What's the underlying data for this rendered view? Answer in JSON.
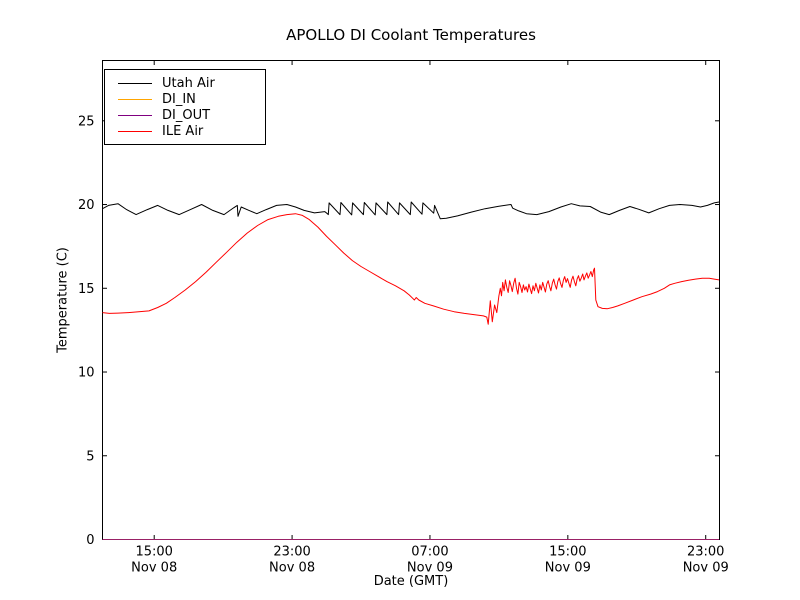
{
  "colors": {
    "background": "#ffffff",
    "axis": "#000000",
    "utah_air": "#000000",
    "di_in": "#ffa500",
    "di_out": "#800080",
    "ile_air": "#ff0000"
  },
  "chart_data": {
    "type": "line",
    "title": "APOLLO DI Coolant Temperatures",
    "xlabel": "Date (GMT)",
    "ylabel": "Temperature (C)",
    "grid": false,
    "legend_position": "upper-left",
    "ylim": [
      0,
      28.6
    ],
    "yticks": [
      0,
      5,
      10,
      15,
      20,
      25
    ],
    "xlim_hours": [
      0,
      35.8
    ],
    "x_axis_note": "hours elapsed from ~12:00 Nov 08 GMT",
    "xticks": [
      {
        "hour": 3,
        "time": "15:00",
        "date": "Nov 08"
      },
      {
        "hour": 11,
        "time": "23:00",
        "date": "Nov 08"
      },
      {
        "hour": 19,
        "time": "07:00",
        "date": "Nov 09"
      },
      {
        "hour": 27,
        "time": "15:00",
        "date": "Nov 09"
      },
      {
        "hour": 35,
        "time": "23:00",
        "date": "Nov 09"
      }
    ],
    "series": [
      {
        "name": "Utah Air",
        "color": "#000000",
        "points": [
          [
            0,
            19.75
          ],
          [
            0.35,
            19.95
          ],
          [
            0.9,
            20.05
          ],
          [
            1.4,
            19.7
          ],
          [
            1.95,
            19.4
          ],
          [
            2.6,
            19.7
          ],
          [
            3.2,
            19.95
          ],
          [
            3.8,
            19.65
          ],
          [
            4.45,
            19.4
          ],
          [
            5.1,
            19.7
          ],
          [
            5.75,
            20.0
          ],
          [
            6.4,
            19.65
          ],
          [
            7.05,
            19.4
          ],
          [
            7.6,
            19.8
          ],
          [
            7.82,
            19.95
          ],
          [
            7.86,
            19.3
          ],
          [
            8.05,
            19.85
          ],
          [
            8.5,
            19.65
          ],
          [
            8.95,
            19.45
          ],
          [
            9.5,
            19.7
          ],
          [
            10.1,
            19.95
          ],
          [
            10.7,
            20.0
          ],
          [
            11.2,
            19.85
          ],
          [
            11.7,
            19.65
          ],
          [
            12.3,
            19.5
          ],
          [
            12.9,
            19.58
          ],
          [
            13.05,
            19.45
          ],
          [
            13.1,
            19.4
          ],
          [
            13.15,
            20.1
          ],
          [
            13.78,
            19.4
          ],
          [
            13.83,
            20.12
          ],
          [
            14.46,
            19.38
          ],
          [
            14.51,
            20.1
          ],
          [
            15.14,
            19.4
          ],
          [
            15.19,
            20.12
          ],
          [
            15.82,
            19.38
          ],
          [
            15.87,
            20.1
          ],
          [
            16.5,
            19.4
          ],
          [
            16.55,
            20.15
          ],
          [
            17.18,
            19.4
          ],
          [
            17.23,
            20.1
          ],
          [
            17.86,
            19.4
          ],
          [
            17.91,
            20.15
          ],
          [
            18.54,
            19.42
          ],
          [
            18.59,
            20.1
          ],
          [
            19.22,
            19.48
          ],
          [
            19.27,
            19.95
          ],
          [
            19.6,
            19.15
          ],
          [
            19.95,
            19.18
          ],
          [
            20.6,
            19.32
          ],
          [
            21.4,
            19.55
          ],
          [
            22.2,
            19.75
          ],
          [
            23.0,
            19.9
          ],
          [
            23.7,
            20.0
          ],
          [
            23.8,
            19.78
          ],
          [
            24.15,
            19.62
          ],
          [
            24.6,
            19.45
          ],
          [
            25.2,
            19.4
          ],
          [
            25.9,
            19.58
          ],
          [
            26.6,
            19.85
          ],
          [
            27.2,
            20.05
          ],
          [
            27.7,
            19.92
          ],
          [
            28.3,
            19.88
          ],
          [
            28.9,
            19.55
          ],
          [
            29.4,
            19.4
          ],
          [
            30.0,
            19.65
          ],
          [
            30.6,
            19.88
          ],
          [
            31.1,
            19.72
          ],
          [
            31.7,
            19.5
          ],
          [
            32.3,
            19.75
          ],
          [
            32.9,
            19.95
          ],
          [
            33.5,
            20.0
          ],
          [
            34.2,
            19.95
          ],
          [
            34.7,
            19.85
          ],
          [
            35.1,
            19.95
          ],
          [
            35.5,
            20.1
          ],
          [
            35.77,
            20.15
          ]
        ]
      },
      {
        "name": "DI_IN",
        "color": "#ffa500",
        "points": [
          [
            0,
            0
          ],
          [
            35.77,
            0
          ]
        ]
      },
      {
        "name": "DI_OUT",
        "color": "#800080",
        "points": [
          [
            0,
            0
          ],
          [
            35.77,
            0
          ]
        ]
      },
      {
        "name": "ILE Air",
        "color": "#ff0000",
        "points": [
          [
            0,
            13.55
          ],
          [
            0.4,
            13.5
          ],
          [
            0.9,
            13.52
          ],
          [
            1.5,
            13.55
          ],
          [
            2.1,
            13.6
          ],
          [
            2.7,
            13.65
          ],
          [
            3.2,
            13.85
          ],
          [
            3.7,
            14.1
          ],
          [
            4.2,
            14.45
          ],
          [
            4.8,
            14.9
          ],
          [
            5.4,
            15.4
          ],
          [
            6.0,
            15.95
          ],
          [
            6.6,
            16.55
          ],
          [
            7.2,
            17.15
          ],
          [
            7.8,
            17.75
          ],
          [
            8.4,
            18.3
          ],
          [
            9.0,
            18.75
          ],
          [
            9.6,
            19.1
          ],
          [
            10.2,
            19.3
          ],
          [
            10.7,
            19.4
          ],
          [
            11.2,
            19.45
          ],
          [
            11.6,
            19.35
          ],
          [
            12.0,
            19.1
          ],
          [
            12.5,
            18.65
          ],
          [
            13.0,
            18.1
          ],
          [
            13.5,
            17.6
          ],
          [
            14.0,
            17.1
          ],
          [
            14.5,
            16.65
          ],
          [
            15.0,
            16.3
          ],
          [
            15.5,
            16.0
          ],
          [
            16.0,
            15.7
          ],
          [
            16.5,
            15.4
          ],
          [
            17.0,
            15.15
          ],
          [
            17.5,
            14.85
          ],
          [
            17.8,
            14.6
          ],
          [
            18.0,
            14.4
          ],
          [
            18.1,
            14.3
          ],
          [
            18.2,
            14.45
          ],
          [
            18.35,
            14.3
          ],
          [
            18.7,
            14.1
          ],
          [
            19.2,
            13.95
          ],
          [
            19.8,
            13.75
          ],
          [
            20.4,
            13.6
          ],
          [
            21.0,
            13.5
          ],
          [
            21.6,
            13.42
          ],
          [
            22.1,
            13.35
          ],
          [
            22.3,
            13.28
          ],
          [
            22.38,
            12.85
          ],
          [
            22.5,
            14.25
          ],
          [
            22.62,
            13.0
          ],
          [
            22.75,
            14.0
          ],
          [
            22.88,
            13.55
          ],
          [
            23.0,
            14.55
          ],
          [
            23.08,
            15.0
          ],
          [
            23.15,
            14.55
          ],
          [
            23.22,
            15.35
          ],
          [
            23.3,
            14.85
          ],
          [
            23.38,
            15.5
          ],
          [
            23.46,
            15.05
          ],
          [
            23.54,
            14.75
          ],
          [
            23.62,
            15.45
          ],
          [
            23.7,
            15.15
          ],
          [
            23.78,
            14.8
          ],
          [
            23.86,
            15.3
          ],
          [
            23.94,
            15.6
          ],
          [
            24.02,
            15.0
          ],
          [
            24.1,
            14.65
          ],
          [
            24.18,
            15.35
          ],
          [
            24.26,
            15.1
          ],
          [
            24.34,
            14.75
          ],
          [
            24.42,
            15.2
          ],
          [
            24.5,
            14.9
          ],
          [
            24.58,
            15.1
          ],
          [
            24.66,
            14.78
          ],
          [
            24.74,
            15.25
          ],
          [
            24.82,
            14.95
          ],
          [
            24.9,
            14.68
          ],
          [
            24.98,
            15.15
          ],
          [
            25.06,
            14.85
          ],
          [
            25.14,
            15.3
          ],
          [
            25.22,
            15.0
          ],
          [
            25.3,
            14.72
          ],
          [
            25.38,
            15.2
          ],
          [
            25.46,
            14.9
          ],
          [
            25.54,
            15.35
          ],
          [
            25.62,
            15.05
          ],
          [
            25.7,
            14.78
          ],
          [
            25.78,
            15.25
          ],
          [
            25.86,
            15.45
          ],
          [
            25.94,
            15.1
          ],
          [
            26.02,
            14.85
          ],
          [
            26.1,
            15.3
          ],
          [
            26.18,
            15.55
          ],
          [
            26.26,
            15.2
          ],
          [
            26.34,
            14.95
          ],
          [
            26.42,
            15.4
          ],
          [
            26.5,
            15.62
          ],
          [
            26.58,
            15.28
          ],
          [
            26.66,
            15.05
          ],
          [
            26.74,
            15.48
          ],
          [
            26.82,
            15.7
          ],
          [
            26.9,
            15.35
          ],
          [
            26.98,
            15.58
          ],
          [
            27.06,
            15.3
          ],
          [
            27.14,
            15.05
          ],
          [
            27.22,
            15.5
          ],
          [
            27.3,
            15.72
          ],
          [
            27.38,
            15.4
          ],
          [
            27.46,
            15.15
          ],
          [
            27.54,
            15.55
          ],
          [
            27.62,
            15.75
          ],
          [
            27.7,
            15.42
          ],
          [
            27.78,
            15.62
          ],
          [
            27.86,
            15.85
          ],
          [
            27.94,
            15.5
          ],
          [
            28.02,
            15.72
          ],
          [
            28.1,
            15.92
          ],
          [
            28.18,
            15.6
          ],
          [
            28.26,
            15.8
          ],
          [
            28.34,
            16.0
          ],
          [
            28.42,
            15.7
          ],
          [
            28.5,
            16.1
          ],
          [
            28.55,
            16.2
          ],
          [
            28.62,
            14.3
          ],
          [
            28.75,
            13.9
          ],
          [
            29.0,
            13.8
          ],
          [
            29.3,
            13.78
          ],
          [
            29.6,
            13.85
          ],
          [
            29.9,
            13.95
          ],
          [
            30.3,
            14.1
          ],
          [
            30.8,
            14.3
          ],
          [
            31.3,
            14.5
          ],
          [
            31.8,
            14.65
          ],
          [
            32.2,
            14.8
          ],
          [
            32.6,
            15.0
          ],
          [
            32.9,
            15.2
          ],
          [
            33.2,
            15.3
          ],
          [
            33.6,
            15.4
          ],
          [
            34.0,
            15.48
          ],
          [
            34.4,
            15.55
          ],
          [
            34.8,
            15.6
          ],
          [
            35.2,
            15.6
          ],
          [
            35.5,
            15.55
          ],
          [
            35.77,
            15.5
          ]
        ]
      }
    ]
  }
}
